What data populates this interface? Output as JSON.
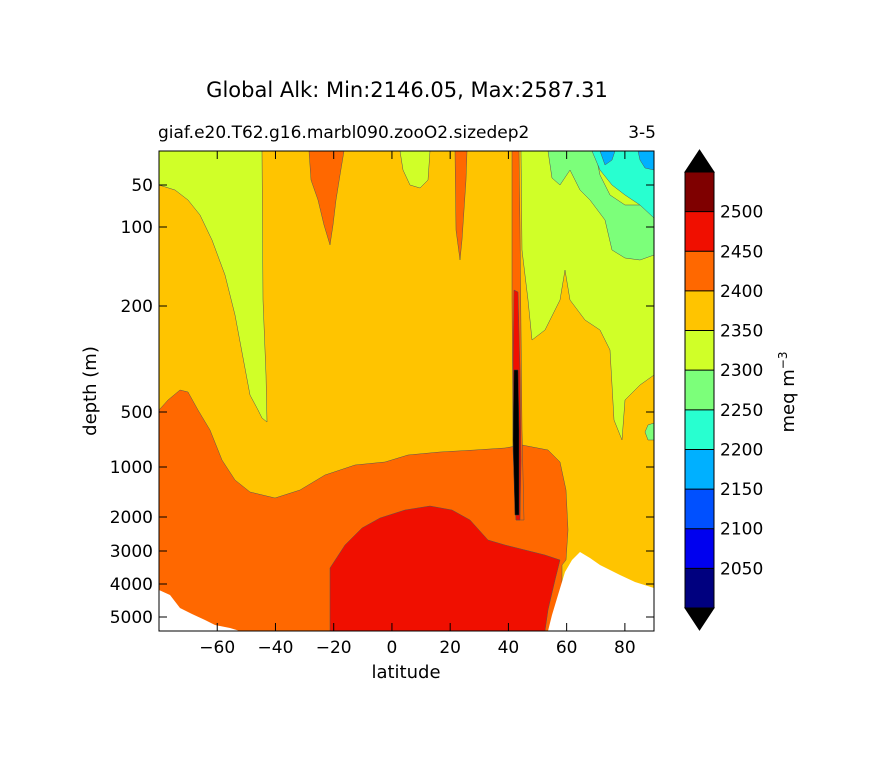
{
  "chart_data": {
    "type": "contour",
    "title": "Global Alk: Min:2146.05, Max:2587.31",
    "subtitle_left": "giaf.e20.T62.g16.marbl090.zooO2.sizedep2",
    "subtitle_right": "3-5",
    "xlabel": "latitude",
    "ylabel": "depth (m)",
    "xlim": [
      -80,
      90
    ],
    "x_ticks": [
      -60,
      -40,
      -20,
      0,
      20,
      40,
      60,
      80
    ],
    "y_ticks": [
      50,
      100,
      200,
      500,
      1000,
      2000,
      3000,
      4000,
      5000
    ],
    "colorbar": {
      "label": "meq m",
      "label_superscript": "−3",
      "levels": [
        2000,
        2050,
        2100,
        2150,
        2200,
        2250,
        2300,
        2350,
        2400,
        2450,
        2500,
        2550
      ],
      "tick_labels": [
        "2050",
        "2100",
        "2150",
        "2200",
        "2250",
        "2300",
        "2350",
        "2400",
        "2450",
        "2500"
      ],
      "colors": [
        "#00007f",
        "#0000ef",
        "#0050ff",
        "#00b0ff",
        "#28ffd0",
        "#7cff7a",
        "#d0ff28",
        "#ffc400",
        "#ff6800",
        "#f00f00",
        "#7f0000"
      ],
      "extend": "both"
    },
    "color_regions": [
      {
        "level": "2350-2400",
        "color": "#ffc400",
        "description": "background upper/intermediate ocean"
      },
      {
        "level": "2300-2350",
        "color": "#d0ff28"
      },
      {
        "level": "2250-2300",
        "color": "#7cff7a"
      },
      {
        "level": "2200-2250",
        "color": "#28ffd0"
      },
      {
        "level": "2150-2200",
        "color": "#00b0ff"
      },
      {
        "level": "2400-2450",
        "color": "#ff6800"
      },
      {
        "level": "2450-2500",
        "color": "#f00f00"
      },
      {
        "level": ">2550",
        "color": "#000000"
      }
    ],
    "land_color": "#ffffff"
  }
}
